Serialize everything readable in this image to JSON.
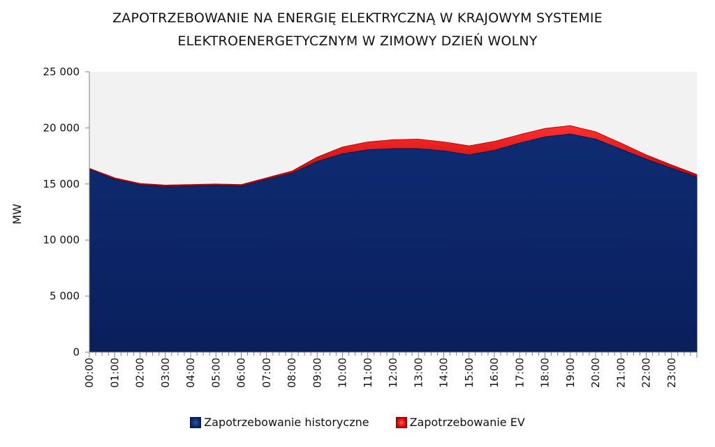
{
  "chart_data": {
    "type": "area",
    "stacked": true,
    "title_lines": [
      "ZAPOTRZEBOWANIE NA ENERGIĘ ELEKTRYCZNĄ W KRAJOWYM SYSTEMIE",
      "ELEKTROENERGETYCZNYM W ZIMOWY DZIEŃ WOLNY"
    ],
    "ylabel": "MW",
    "ylim": [
      0,
      25000
    ],
    "yticks": [
      0,
      5000,
      10000,
      15000,
      20000,
      25000
    ],
    "ytick_labels": [
      "0",
      "5 000",
      "10 000",
      "15 000",
      "20 000",
      "25 000"
    ],
    "x_labels": [
      "00:00",
      "01:00",
      "02:00",
      "03:00",
      "04:00",
      "05:00",
      "06:00",
      "07:00",
      "08:00",
      "09:00",
      "10:00",
      "11:00",
      "12:00",
      "13:00",
      "14:00",
      "15:00",
      "16:00",
      "17:00",
      "18:00",
      "19:00",
      "20:00",
      "21:00",
      "22:00",
      "23:00"
    ],
    "grid": false,
    "legend_position": "bottom",
    "background_color": "#f2f2f2",
    "series": [
      {
        "name": "Zapotrzebowanie historyczne",
        "color": "#0b2363",
        "hourly_values": [
          16300,
          15400,
          14900,
          14750,
          14800,
          14850,
          14800,
          15400,
          15950,
          17000,
          17700,
          18050,
          18150,
          18150,
          17950,
          17600,
          18000,
          18650,
          19200,
          19450,
          19000,
          18100,
          17200,
          16400,
          15600
        ]
      },
      {
        "name": "Zapotrzebowanie EV",
        "color": "#e01010",
        "hourly_values": [
          100,
          150,
          150,
          150,
          150,
          150,
          150,
          150,
          200,
          400,
          600,
          700,
          800,
          850,
          800,
          800,
          800,
          750,
          750,
          750,
          650,
          550,
          400,
          300,
          250
        ]
      }
    ]
  }
}
